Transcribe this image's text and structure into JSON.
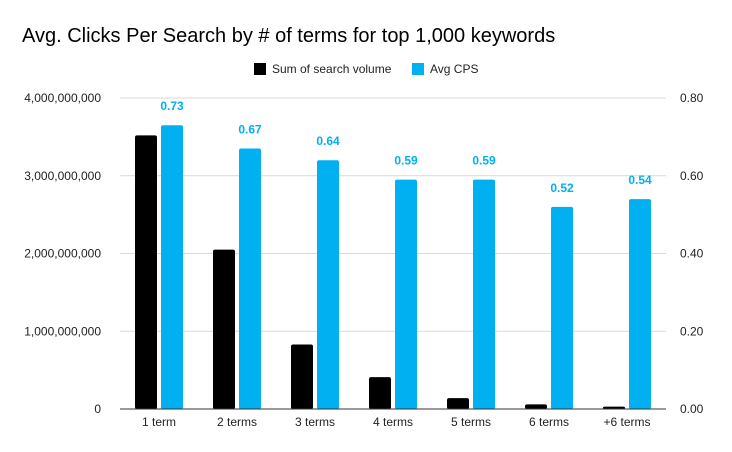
{
  "chart_data": {
    "type": "bar",
    "title": "Avg. Clicks Per Search by # of terms for top 1,000 keywords",
    "categories": [
      "1 term",
      "2 terms",
      "3 terms",
      "4 terms",
      "5 terms",
      "6 terms",
      "+6 terms"
    ],
    "series": [
      {
        "name": "Sum of search volume",
        "axis": "left",
        "color": "#000000",
        "values": [
          3520000000,
          2050000000,
          830000000,
          410000000,
          140000000,
          60000000,
          30000000
        ]
      },
      {
        "name": "Avg CPS",
        "axis": "right",
        "color": "#00b0f0",
        "values": [
          0.73,
          0.67,
          0.64,
          0.59,
          0.59,
          0.52,
          0.54
        ],
        "data_labels": [
          "0.73",
          "0.67",
          "0.64",
          "0.59",
          "0.59",
          "0.52",
          "0.54"
        ]
      }
    ],
    "left_axis": {
      "ylim": [
        0,
        4000000000
      ],
      "ticks": [
        0,
        1000000000,
        2000000000,
        3000000000,
        4000000000
      ],
      "tick_labels": [
        "0",
        "1,000,000,000",
        "2,000,000,000",
        "3,000,000,000",
        "4,000,000,000"
      ]
    },
    "right_axis": {
      "ylim": [
        0,
        0.8
      ],
      "ticks": [
        0,
        0.2,
        0.4,
        0.6,
        0.8
      ],
      "tick_labels": [
        "0.00",
        "0.20",
        "0.40",
        "0.60",
        "0.80"
      ]
    },
    "grid": true,
    "legend_position": "top-center"
  }
}
